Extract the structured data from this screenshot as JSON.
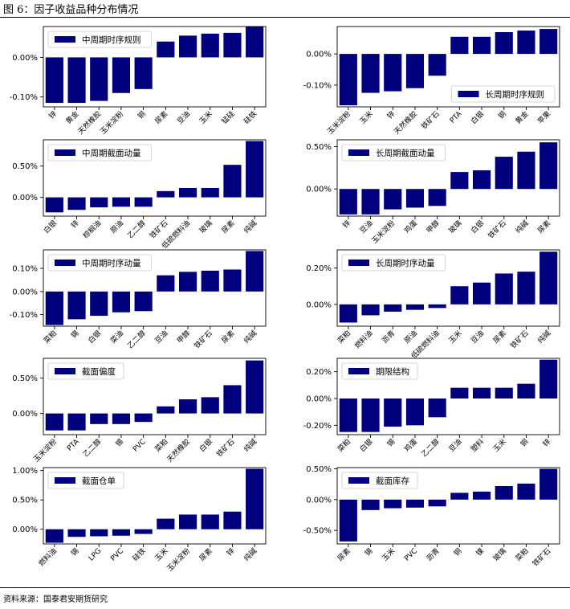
{
  "page": {
    "figure_title": "图 6：因子收益品种分布情况",
    "source_note": "资料来源：国泰君安期货研究"
  },
  "colors": {
    "bar": "#00007f"
  },
  "chart_data": [
    {
      "type": "bar",
      "legend": "中周期时序规则",
      "legend_position": "top-left",
      "categories": [
        "锌",
        "黄金",
        "天然橡胶",
        "玉米淀粉",
        "铜",
        "尿素",
        "豆油",
        "玉米",
        "锰硅",
        "硅铁"
      ],
      "values": [
        -0.115,
        -0.115,
        -0.11,
        -0.09,
        -0.08,
        0.04,
        0.055,
        0.06,
        0.062,
        0.078
      ],
      "yticks": [
        -0.1,
        0.0
      ],
      "tick_labels": [
        "-0.10%",
        "0.00%"
      ],
      "ylim": [
        -0.125,
        0.078
      ]
    },
    {
      "type": "bar",
      "legend": "长周期时序规则",
      "legend_position": "bottom-right",
      "categories": [
        "玉米淀粉",
        "玉米",
        "锌",
        "天然橡胶",
        "铁矿石",
        "PTA",
        "白银",
        "铜",
        "黄金",
        "苹果"
      ],
      "values": [
        -0.165,
        -0.125,
        -0.12,
        -0.11,
        -0.07,
        0.055,
        0.055,
        0.07,
        0.075,
        0.08
      ],
      "yticks": [
        -0.1,
        0.0
      ],
      "tick_labels": [
        "-0.10%",
        "0.00%"
      ],
      "ylim": [
        -0.17,
        0.088
      ]
    },
    {
      "type": "bar",
      "legend": "中周期截面动量",
      "legend_position": "top-left",
      "categories": [
        "白银",
        "锌",
        "棕榈油",
        "原油",
        "乙二醇",
        "铁矿石",
        "低硫燃料油",
        "玻璃",
        "尿素",
        "纯碱"
      ],
      "values": [
        -0.24,
        -0.2,
        -0.16,
        -0.15,
        -0.15,
        0.1,
        0.15,
        0.15,
        0.52,
        0.9
      ],
      "yticks": [
        0.0,
        0.5
      ],
      "tick_labels": [
        "0.00%",
        "0.50%"
      ],
      "ylim": [
        -0.3,
        0.92
      ]
    },
    {
      "type": "bar",
      "legend": "长周期截面动量",
      "legend_position": "top-left",
      "categories": [
        "锌",
        "豆油",
        "玉米淀粉",
        "鸡蛋",
        "甲醇",
        "玻璃",
        "白银",
        "铁矿石",
        "纯碱",
        "尿素"
      ],
      "values": [
        -0.3,
        -0.3,
        -0.24,
        -0.22,
        -0.2,
        0.2,
        0.22,
        0.38,
        0.44,
        0.55
      ],
      "yticks": [
        0.0,
        0.5
      ],
      "tick_labels": [
        "0.00%",
        "0.50%"
      ],
      "ylim": [
        -0.32,
        0.58
      ]
    },
    {
      "type": "bar",
      "legend": "中周期时序动量",
      "legend_position": "top-left",
      "categories": [
        "菜粕",
        "锡",
        "白银",
        "菜油",
        "乙二醇",
        "豆油",
        "甲醇",
        "铁矿石",
        "尿素",
        "纯碱"
      ],
      "values": [
        -0.145,
        -0.12,
        -0.105,
        -0.09,
        -0.085,
        0.07,
        0.085,
        0.09,
        0.095,
        0.175
      ],
      "yticks": [
        -0.1,
        0.0,
        0.1
      ],
      "tick_labels": [
        "-0.10%",
        "0.00%",
        "0.10%"
      ],
      "ylim": [
        -0.15,
        0.18
      ]
    },
    {
      "type": "bar",
      "legend": "长周期时序动量",
      "legend_position": "top-left",
      "categories": [
        "菜粕",
        "燃料油",
        "沥青",
        "原油",
        "低硫燃料油",
        "玉米",
        "豆油",
        "尿素",
        "铁矿石",
        "纯碱"
      ],
      "values": [
        -0.1,
        -0.06,
        -0.04,
        -0.03,
        -0.02,
        0.1,
        0.12,
        0.17,
        0.18,
        0.29
      ],
      "yticks": [
        0.0,
        0.2
      ],
      "tick_labels": [
        "0.00%",
        "0.20%"
      ],
      "ylim": [
        -0.12,
        0.3
      ]
    },
    {
      "type": "bar",
      "legend": "截面偏度",
      "legend_position": "top-left",
      "categories": [
        "玉米淀粉",
        "PTA",
        "乙二醇",
        "锡",
        "PVC",
        "菜粕",
        "天然橡胶",
        "白银",
        "铁矿石",
        "纯碱"
      ],
      "values": [
        -0.24,
        -0.24,
        -0.15,
        -0.15,
        -0.12,
        0.1,
        0.2,
        0.23,
        0.4,
        0.75
      ],
      "yticks": [
        0.0,
        0.5
      ],
      "tick_labels": [
        "0.00%",
        "0.50%"
      ],
      "ylim": [
        -0.3,
        0.78
      ]
    },
    {
      "type": "bar",
      "legend": "期限结构",
      "legend_position": "top-left",
      "categories": [
        "菜粕",
        "白银",
        "锡",
        "鸡蛋",
        "乙二醇",
        "豆油",
        "塑料",
        "玉米",
        "铜",
        "锌"
      ],
      "values": [
        -0.25,
        -0.25,
        -0.21,
        -0.2,
        -0.14,
        0.08,
        0.08,
        0.08,
        0.11,
        0.29
      ],
      "yticks": [
        -0.2,
        0.0,
        0.2
      ],
      "tick_labels": [
        "-0.20%",
        "0.00%",
        "0.20%"
      ],
      "ylim": [
        -0.27,
        0.3
      ]
    },
    {
      "type": "bar",
      "legend": "截面仓单",
      "legend_position": "top-left",
      "categories": [
        "燃料油",
        "锡",
        "LPG",
        "PVC",
        "硅铁",
        "玉米",
        "玉米淀粉",
        "尿素",
        "锌",
        "纯碱"
      ],
      "values": [
        -0.23,
        -0.13,
        -0.12,
        -0.11,
        -0.08,
        0.18,
        0.25,
        0.25,
        0.3,
        1.03
      ],
      "yticks": [
        0.0,
        0.5,
        1.0
      ],
      "tick_labels": [
        "0.00%",
        "0.50%",
        "1.00%"
      ],
      "ylim": [
        -0.25,
        1.05
      ]
    },
    {
      "type": "bar",
      "legend": "截面库存",
      "legend_position": "top-left",
      "categories": [
        "尿素",
        "锡",
        "玉米",
        "PVC",
        "沥青",
        "铜",
        "镍",
        "玻璃",
        "菜粕",
        "铁矿石"
      ],
      "values": [
        -0.68,
        -0.17,
        -0.14,
        -0.13,
        -0.11,
        0.11,
        0.13,
        0.22,
        0.26,
        0.5
      ],
      "yticks": [
        -0.5,
        0.0,
        0.5
      ],
      "tick_labels": [
        "-0.50%",
        "0.00%",
        "0.50%"
      ],
      "ylim": [
        -0.72,
        0.52
      ]
    }
  ]
}
